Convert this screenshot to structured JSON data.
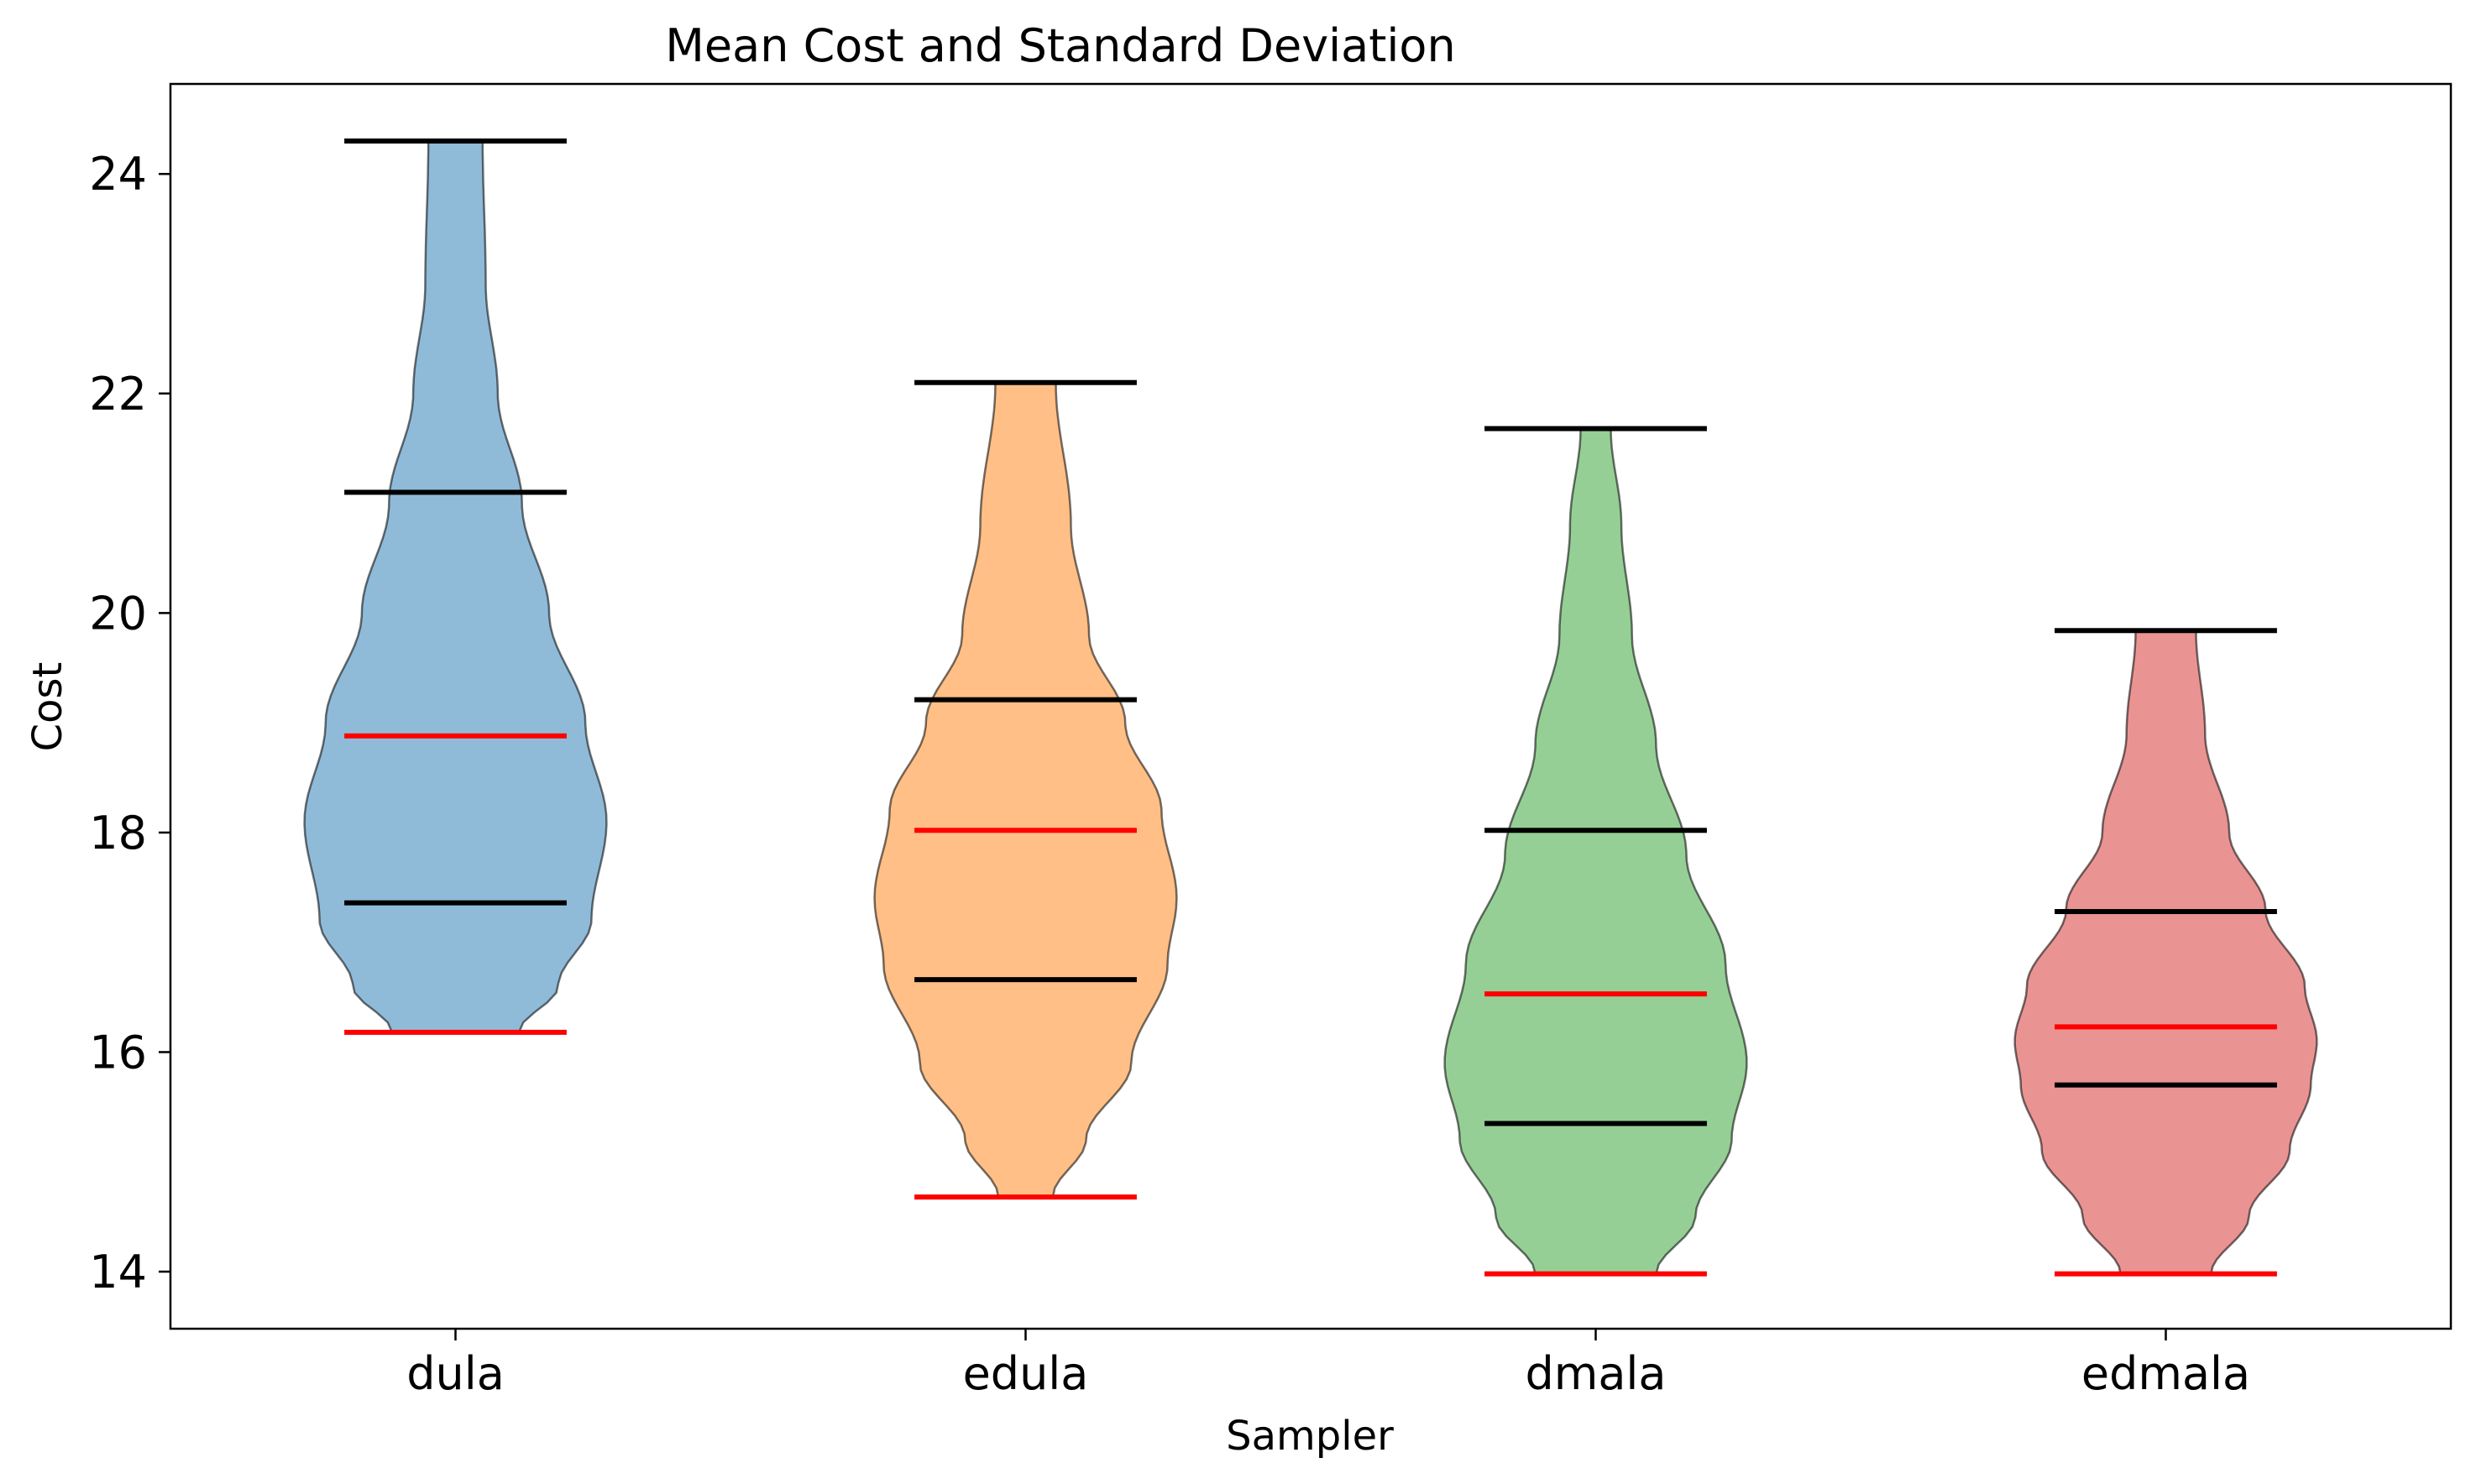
{
  "chart_data": {
    "type": "violin",
    "title": "Mean Cost and Standard Deviation",
    "xlabel": "Sampler",
    "ylabel": "Cost",
    "ylim": [
      13.48,
      24.82
    ],
    "yticks": [
      14,
      16,
      18,
      20,
      22,
      24
    ],
    "categories": [
      "dula",
      "edula",
      "dmala",
      "edmala"
    ],
    "series": [
      {
        "color": "#1f77b4",
        "min": 16.18,
        "max": 24.3,
        "mean": 18.88,
        "lines_black": [
          24.3,
          21.1,
          17.36
        ],
        "lines_red": [
          18.88,
          16.18
        ],
        "width_profile": [
          [
            16.18,
            0.42
          ],
          [
            16.6,
            0.68
          ],
          [
            17.2,
            0.9
          ],
          [
            18.1,
            1.0
          ],
          [
            19.0,
            0.86
          ],
          [
            20.0,
            0.62
          ],
          [
            21.0,
            0.44
          ],
          [
            22.0,
            0.28
          ],
          [
            23.0,
            0.2
          ],
          [
            24.3,
            0.18
          ]
        ]
      },
      {
        "color": "#ff7f0e",
        "min": 14.68,
        "max": 22.1,
        "mean": 18.02,
        "lines_black": [
          22.1,
          19.21,
          16.66
        ],
        "lines_red": [
          18.02,
          14.68
        ],
        "width_profile": [
          [
            14.68,
            0.18
          ],
          [
            15.2,
            0.4
          ],
          [
            15.9,
            0.7
          ],
          [
            16.8,
            0.94
          ],
          [
            17.4,
            1.0
          ],
          [
            18.2,
            0.9
          ],
          [
            19.0,
            0.66
          ],
          [
            19.8,
            0.42
          ],
          [
            20.8,
            0.3
          ],
          [
            22.1,
            0.2
          ]
        ]
      },
      {
        "color": "#2ca02c",
        "min": 13.98,
        "max": 21.68,
        "mean": 16.53,
        "lines_black": [
          21.68,
          18.02,
          15.35
        ],
        "lines_red": [
          16.53,
          13.98
        ],
        "width_profile": [
          [
            13.98,
            0.4
          ],
          [
            14.5,
            0.66
          ],
          [
            15.2,
            0.9
          ],
          [
            15.9,
            1.0
          ],
          [
            16.8,
            0.86
          ],
          [
            17.8,
            0.6
          ],
          [
            18.8,
            0.4
          ],
          [
            19.8,
            0.24
          ],
          [
            20.8,
            0.17
          ],
          [
            21.68,
            0.1
          ]
        ]
      },
      {
        "color": "#d62728",
        "min": 13.98,
        "max": 19.84,
        "mean": 16.23,
        "lines_black": [
          19.84,
          17.28,
          15.7
        ],
        "lines_red": [
          16.23,
          13.98
        ],
        "width_profile": [
          [
            13.98,
            0.3
          ],
          [
            14.5,
            0.55
          ],
          [
            15.1,
            0.82
          ],
          [
            15.7,
            0.96
          ],
          [
            16.1,
            1.0
          ],
          [
            16.6,
            0.92
          ],
          [
            17.3,
            0.66
          ],
          [
            18.0,
            0.42
          ],
          [
            18.9,
            0.26
          ],
          [
            19.84,
            0.2
          ]
        ]
      }
    ]
  }
}
